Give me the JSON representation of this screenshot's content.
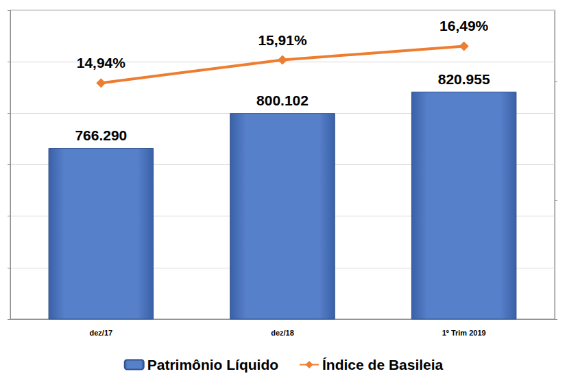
{
  "chart_data": {
    "type": "bar",
    "categories": [
      "dez/17",
      "dez/18",
      "1º Trim 2019"
    ],
    "series": [
      {
        "name": "Patrimônio Líquido",
        "type": "bar",
        "color": "#4472c4",
        "values": [
          766290,
          800102,
          820955
        ],
        "value_labels": [
          "766.290",
          "800.102",
          "820.955"
        ]
      },
      {
        "name": "Índice de Basileia",
        "type": "line",
        "color": "#ed7d31",
        "axis": "y2",
        "marker": "diamond",
        "values": [
          14.94,
          15.91,
          16.49
        ],
        "value_labels": [
          "14,94%",
          "15,91%",
          "16,49%"
        ]
      }
    ],
    "ylim": [
      600000,
      900000
    ],
    "yticks": [
      600000,
      650000,
      700000,
      750000,
      800000,
      850000,
      900000
    ],
    "y2lim": [
      5,
      18
    ],
    "y2ticks": [
      5,
      10,
      15
    ],
    "grid": true,
    "legend": "bottom",
    "data_labels": true,
    "tick_labels": "x"
  }
}
